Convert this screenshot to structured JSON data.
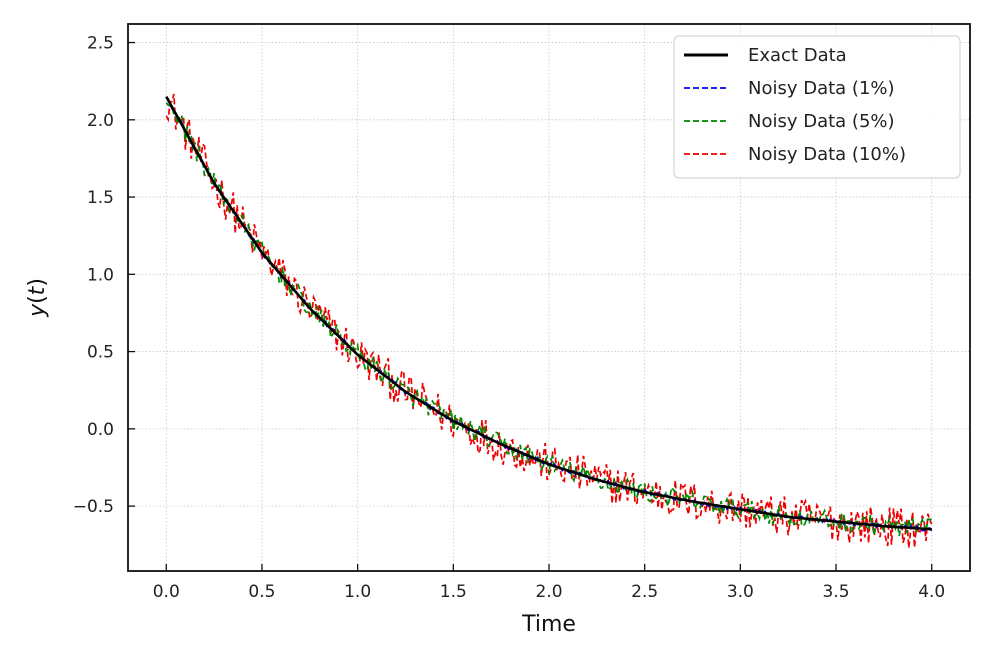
{
  "chart_data": {
    "type": "line",
    "title": "",
    "xlabel": "Time",
    "ylabel": "y(t)",
    "xlim": [
      -0.2,
      4.2
    ],
    "ylim": [
      -0.92,
      2.62
    ],
    "xticks": [
      0.0,
      0.5,
      1.0,
      1.5,
      2.0,
      2.5,
      3.0,
      3.5,
      4.0
    ],
    "xtick_labels": [
      "0.0",
      "0.5",
      "1.0",
      "1.5",
      "2.0",
      "2.5",
      "3.0",
      "3.5",
      "4.0"
    ],
    "yticks": [
      -0.5,
      0.0,
      0.5,
      1.0,
      1.5,
      2.0,
      2.5
    ],
    "ytick_labels": [
      "−0.5",
      "0.0",
      "0.5",
      "1.0",
      "1.5",
      "2.0",
      "2.5"
    ],
    "grid": true,
    "legend_position": "top-right",
    "x": [
      0.0,
      0.25,
      0.5,
      0.75,
      1.0,
      1.25,
      1.5,
      1.75,
      2.0,
      2.25,
      2.5,
      2.75,
      3.0,
      3.25,
      3.5,
      3.75,
      4.0
    ],
    "series": [
      {
        "name": "Exact Data",
        "color": "#000000",
        "style": "solid",
        "values": [
          2.15,
          1.59,
          1.14,
          0.78,
          0.48,
          0.24,
          0.05,
          -0.1,
          -0.23,
          -0.33,
          -0.41,
          -0.47,
          -0.52,
          -0.57,
          -0.6,
          -0.63,
          -0.65
        ]
      },
      {
        "name": "Noisy Data (1%)",
        "color": "#0000ee",
        "style": "dashed",
        "values": [
          2.17,
          1.6,
          1.13,
          0.79,
          0.48,
          0.24,
          0.05,
          -0.1,
          -0.23,
          -0.33,
          -0.41,
          -0.47,
          -0.52,
          -0.57,
          -0.6,
          -0.63,
          -0.65
        ]
      },
      {
        "name": "Noisy Data (5%)",
        "color": "#008800",
        "style": "dashed",
        "values": [
          2.08,
          1.62,
          1.16,
          0.76,
          0.5,
          0.23,
          0.06,
          -0.11,
          -0.22,
          -0.34,
          -0.4,
          -0.48,
          -0.52,
          -0.56,
          -0.61,
          -0.62,
          -0.66
        ]
      },
      {
        "name": "Noisy Data (10%)",
        "color": "#ee0000",
        "style": "dashed",
        "values": [
          2.45,
          1.55,
          1.2,
          0.74,
          0.52,
          0.22,
          0.07,
          -0.12,
          -0.21,
          -0.3,
          -0.43,
          -0.45,
          -0.55,
          -0.55,
          -0.62,
          -0.64,
          -0.61
        ]
      }
    ]
  }
}
